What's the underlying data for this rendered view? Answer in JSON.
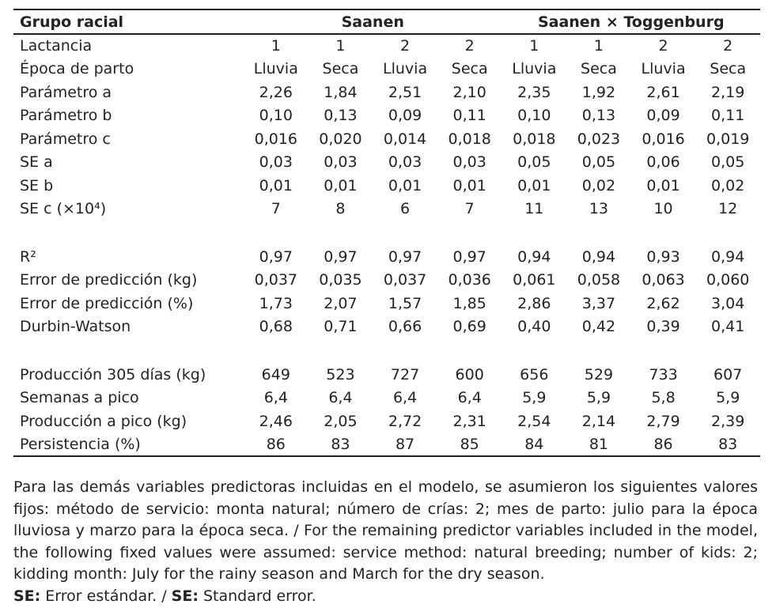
{
  "colors": {
    "text": "#232323",
    "rule": "#1f1f1f",
    "background": "#ffffff"
  },
  "table": {
    "header": {
      "label": "Grupo racial",
      "group1": "Saanen",
      "group2": "Saanen × Toggenburg"
    },
    "rows": [
      {
        "label": "Lactancia",
        "values": [
          "1",
          "1",
          "2",
          "2",
          "1",
          "1",
          "2",
          "2"
        ]
      },
      {
        "label": "Época de parto",
        "values": [
          "Lluvia",
          "Seca",
          "Lluvia",
          "Seca",
          "Lluvia",
          "Seca",
          "Lluvia",
          "Seca"
        ]
      },
      {
        "label": "Parámetro a",
        "values": [
          "2,26",
          "1,84",
          "2,51",
          "2,10",
          "2,35",
          "1,92",
          "2,61",
          "2,19"
        ]
      },
      {
        "label": "Parámetro b",
        "values": [
          "0,10",
          "0,13",
          "0,09",
          "0,11",
          "0,10",
          "0,13",
          "0,09",
          "0,11"
        ]
      },
      {
        "label": "Parámetro c",
        "values": [
          "0,016",
          "0,020",
          "0,014",
          "0,018",
          "0,018",
          "0,023",
          "0,016",
          "0,019"
        ]
      },
      {
        "label": "SE a",
        "values": [
          "0,03",
          "0,03",
          "0,03",
          "0,03",
          "0,05",
          "0,05",
          "0,06",
          "0,05"
        ]
      },
      {
        "label": "SE b",
        "values": [
          "0,01",
          "0,01",
          "0,01",
          "0,01",
          "0,01",
          "0,02",
          "0,01",
          "0,02"
        ]
      },
      {
        "label": "SE c (×10⁴)",
        "values": [
          "7",
          "8",
          "6",
          "7",
          "11",
          "13",
          "10",
          "12"
        ]
      },
      {
        "spacer": true
      },
      {
        "label": "R²",
        "values": [
          "0,97",
          "0,97",
          "0,97",
          "0,97",
          "0,94",
          "0,94",
          "0,93",
          "0,94"
        ]
      },
      {
        "label": "Error de predicción (kg)",
        "values": [
          "0,037",
          "0,035",
          "0,037",
          "0,036",
          "0,061",
          "0,058",
          "0,063",
          "0,060"
        ]
      },
      {
        "label": "Error de predicción (%)",
        "values": [
          "1,73",
          "2,07",
          "1,57",
          "1,85",
          "2,86",
          "3,37",
          "2,62",
          "3,04"
        ]
      },
      {
        "label": "Durbin-Watson",
        "values": [
          "0,68",
          "0,71",
          "0,66",
          "0,69",
          "0,40",
          "0,42",
          "0,39",
          "0,41"
        ]
      },
      {
        "spacer": true
      },
      {
        "label": "Producción 305 días (kg)",
        "values": [
          "649",
          "523",
          "727",
          "600",
          "656",
          "529",
          "733",
          "607"
        ]
      },
      {
        "label": "Semanas a pico",
        "values": [
          "6,4",
          "6,4",
          "6,4",
          "6,4",
          "5,9",
          "5,9",
          "5,8",
          "5,9"
        ]
      },
      {
        "label": "Producción a pico (kg)",
        "values": [
          "2,46",
          "2,05",
          "2,72",
          "2,31",
          "2,54",
          "2,14",
          "2,79",
          "2,39"
        ]
      },
      {
        "label": "Persistencia (%)",
        "values": [
          "86",
          "83",
          "87",
          "85",
          "84",
          "81",
          "86",
          "83"
        ]
      }
    ]
  },
  "footnote": {
    "note": "Para las demás variables predictoras incluidas en el modelo, se asumieron los siguientes valores fijos: método de servicio: monta natural; número de crías: 2; mes de parto: julio para la época lluviosa y marzo para la época seca. / For the remaining predictor variables included in the model, the following fixed values were assumed: service method: natural breeding; number of kids: 2; kidding month: July for the rainy season and March for the dry season.",
    "se_parts": [
      {
        "text": "SE:",
        "bold": true
      },
      {
        "text": " Error estándar. / ",
        "bold": false
      },
      {
        "text": "SE:",
        "bold": true
      },
      {
        "text": " Standard error.",
        "bold": false
      }
    ]
  }
}
